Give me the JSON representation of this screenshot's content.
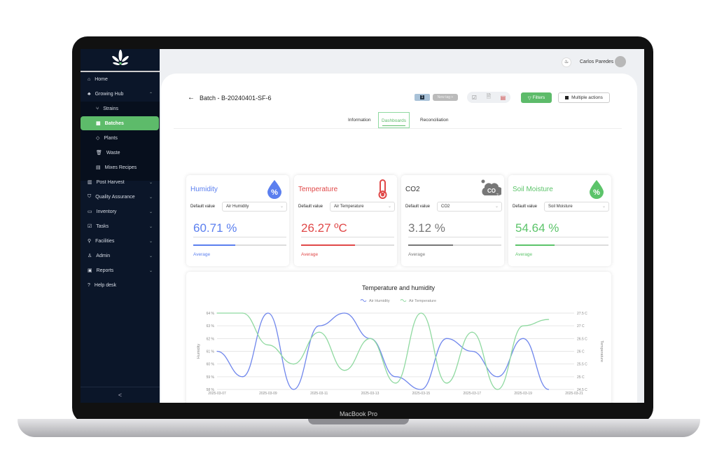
{
  "device": {
    "brand": "MacBook Pro"
  },
  "user": {
    "name": "Carlos Paredes"
  },
  "sidebar": {
    "items": [
      {
        "label": "Home",
        "icon": "home-icon"
      },
      {
        "label": "Growing Hub",
        "icon": "plant-icon",
        "expanded": true
      },
      {
        "label": "Strains",
        "icon": "branch-icon",
        "sub": true
      },
      {
        "label": "Batches",
        "icon": "grid-icon",
        "sub": true,
        "active": true
      },
      {
        "label": "Plants",
        "icon": "tag-icon",
        "sub": true
      },
      {
        "label": "Waste",
        "icon": "trash-icon",
        "sub": true
      },
      {
        "label": "Mixes Recipes",
        "icon": "book-icon",
        "sub": true
      },
      {
        "label": "Post Harvest",
        "icon": "columns-icon"
      },
      {
        "label": "Quality Assurance",
        "icon": "shield-icon"
      },
      {
        "label": "Inventory",
        "icon": "folder-icon"
      },
      {
        "label": "Tasks",
        "icon": "checkbox-icon"
      },
      {
        "label": "Facilities",
        "icon": "key-icon"
      },
      {
        "label": "Admin",
        "icon": "user-icon"
      },
      {
        "label": "Reports",
        "icon": "report-icon"
      },
      {
        "label": "Help desk",
        "icon": "help-icon"
      }
    ],
    "collapse": "<"
  },
  "header": {
    "title": "Batch - B-20240401-SF-6",
    "tag_badge": "1",
    "new_tag": "New tag +",
    "filters": "Filters",
    "multiple_actions": "Multiple actions"
  },
  "tabs": [
    {
      "label": "Information"
    },
    {
      "label": "Dashboards",
      "active": true
    },
    {
      "label": "Reconciliation"
    }
  ],
  "cards": [
    {
      "title": "Humidity",
      "color": "#5b7fef",
      "label": "Default value",
      "select": "Air Humidity",
      "value": "60.71 %",
      "progress": 0.45,
      "footer": "Average",
      "icon": "water-drop-percent-icon"
    },
    {
      "title": "Temperature",
      "color": "#e04848",
      "label": "Default value",
      "select": "Air Temperature",
      "value": "26.27 ºC",
      "progress": 0.58,
      "footer": "Average",
      "icon": "thermometer-icon"
    },
    {
      "title": "CO2",
      "color": "#777777",
      "label": "Default value",
      "select": "CO2",
      "value": "3.12 %",
      "progress": 0.48,
      "footer": "Average",
      "icon": "co2-cloud-icon",
      "icon_text": "CO2"
    },
    {
      "title": "Soil Moisture",
      "color": "#5cc46a",
      "label": "Default value",
      "select": "Soil Moisture",
      "value": "54.64 %",
      "progress": 0.42,
      "footer": "Average",
      "icon": "soil-drop-percent-icon"
    }
  ],
  "chart_data": {
    "type": "line",
    "title": "Temperature and humidity",
    "x": [
      "2025-03-07",
      "2025-03-08",
      "2025-03-09",
      "2025-03-10",
      "2025-03-11",
      "2025-03-12",
      "2025-03-13",
      "2025-03-14",
      "2025-03-15",
      "2025-03-16",
      "2025-03-17",
      "2025-03-18",
      "2025-03-19",
      "2025-03-20"
    ],
    "xticks": [
      "2025-03-07",
      "2025-03-09",
      "2025-03-11",
      "2025-03-13",
      "2025-03-15",
      "2025-03-17",
      "2025-03-19",
      "2025-03-21"
    ],
    "xlim": [
      "2025-03-07",
      "2025-03-21"
    ],
    "series": [
      {
        "name": "Air Humidity",
        "axis": "left",
        "color": "#6f86ec",
        "values": [
          61,
          59,
          64,
          58,
          63,
          64,
          62,
          59,
          58,
          62,
          61,
          59,
          62,
          58
        ]
      },
      {
        "name": "Air Temperature",
        "axis": "right",
        "color": "#8fd9a0",
        "values": [
          27.5,
          27.5,
          26.25,
          25.5,
          26.75,
          25.25,
          26.5,
          24.75,
          27.5,
          24.75,
          26.75,
          24.5,
          27,
          27.25
        ]
      }
    ],
    "ylabel": "Humidity",
    "ylim": [
      58,
      64
    ],
    "yticks": [
      "58 %",
      "59 %",
      "60 %",
      "61 %",
      "62 %",
      "63 %",
      "64 %"
    ],
    "y2label": "Temperature",
    "y2lim": [
      24.5,
      27.5
    ],
    "y2ticks": [
      "24.5 C",
      "25 C",
      "25.5 C",
      "26 C",
      "26.5 C",
      "27 C",
      "27.5 C"
    ],
    "grid": true,
    "legend": "top"
  }
}
